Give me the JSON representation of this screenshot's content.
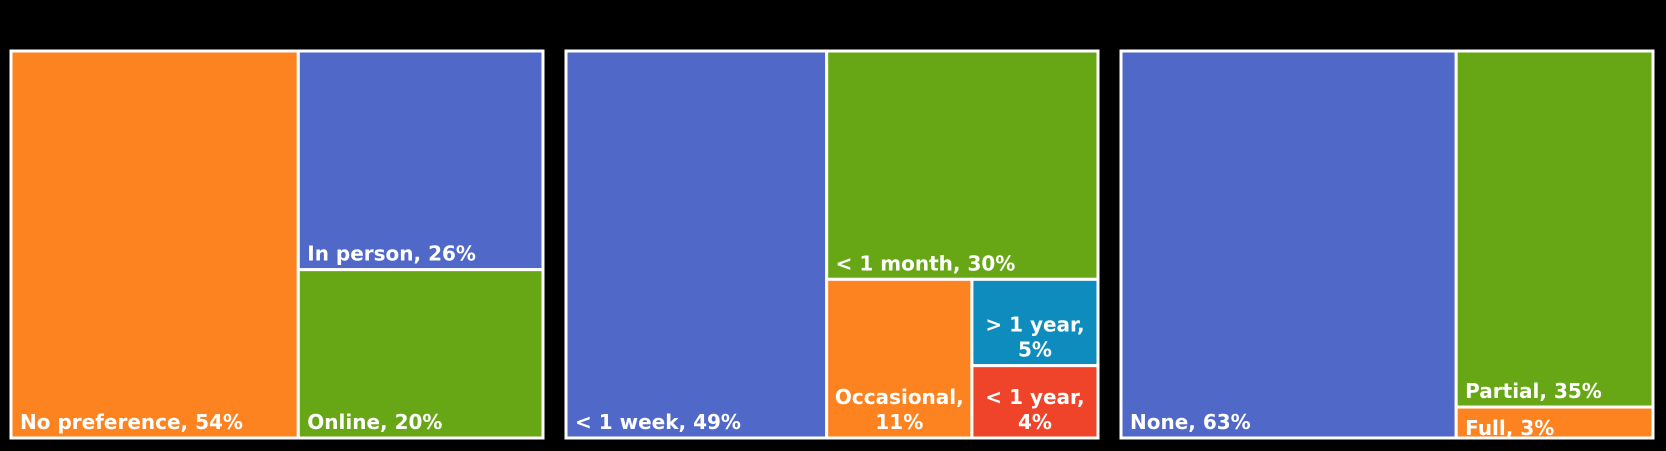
{
  "chart_data": [
    {
      "type": "treemap",
      "items": [
        {
          "label": "No preference, 54%",
          "lines": [
            "No preference, 54%"
          ],
          "value": 54,
          "color": "#FC8320",
          "align": "left"
        },
        {
          "label": "In person, 26%",
          "lines": [
            "In person, 26%"
          ],
          "value": 26,
          "color": "#5068C8",
          "align": "left"
        },
        {
          "label": "Online, 20%",
          "lines": [
            "Online, 20%"
          ],
          "value": 20,
          "color": "#67A715",
          "align": "left"
        }
      ]
    },
    {
      "type": "treemap",
      "items": [
        {
          "label": "< 1 week, 49%",
          "lines": [
            "< 1 week, 49%"
          ],
          "value": 49,
          "color": "#5068C8",
          "align": "left"
        },
        {
          "label": "< 1 month, 30%",
          "lines": [
            "< 1 month, 30%"
          ],
          "value": 30,
          "color": "#67A715",
          "align": "left"
        },
        {
          "label": "Occasional, 11%",
          "lines": [
            "Occasional,",
            "11%"
          ],
          "value": 11,
          "color": "#FC8320",
          "align": "center"
        },
        {
          "label": "> 1 year, 5%",
          "lines": [
            "> 1 year,",
            "5%"
          ],
          "value": 5,
          "color": "#0E8CBE",
          "align": "center"
        },
        {
          "label": "< 1 year, 4%",
          "lines": [
            "< 1 year,",
            "4%"
          ],
          "value": 4,
          "color": "#F0442A",
          "align": "center"
        }
      ]
    },
    {
      "type": "treemap",
      "items": [
        {
          "label": "None, 63%",
          "lines": [
            "None, 63%"
          ],
          "value": 63,
          "color": "#5068C8",
          "align": "left"
        },
        {
          "label": "Partial, 35%",
          "lines": [
            "Partial, 35%"
          ],
          "value": 35,
          "color": "#67A715",
          "align": "left"
        },
        {
          "label": "Full, 3%",
          "lines": [
            "Full, 3%"
          ],
          "value": 3,
          "color": "#FC8320",
          "align": "left"
        }
      ]
    }
  ]
}
